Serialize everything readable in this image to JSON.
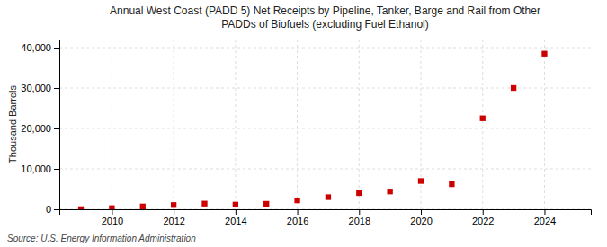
{
  "chart_data": {
    "type": "scatter",
    "title": "Annual West Coast (PADD 5) Net Receipts by Pipeline, Tanker, Barge and Rail from Other\nPADDs of Biofuels (excluding Fuel Ethanol)",
    "ylabel": "Thousand Barrels",
    "annotations": [
      "Source: U.S. Energy Information Administration"
    ],
    "x": [
      2009,
      2010,
      2011,
      2012,
      2013,
      2014,
      2015,
      2016,
      2017,
      2018,
      2019,
      2020,
      2021,
      2022,
      2023,
      2024
    ],
    "values": [
      30,
      280,
      700,
      1050,
      1400,
      1150,
      1350,
      2200,
      3000,
      4000,
      4400,
      7000,
      6200,
      22500,
      30000,
      38500
    ],
    "color": "#cc0000",
    "marker": "square",
    "xlim": [
      2008.3,
      2025.5
    ],
    "ylim": [
      0,
      42000
    ],
    "xticks": [
      2010,
      2012,
      2014,
      2016,
      2018,
      2020,
      2022,
      2024
    ],
    "yticks": [
      0,
      {
        "value": 10000,
        "label": "10,000"
      },
      {
        "value": 20000,
        "label": "20,000"
      },
      {
        "value": 30000,
        "label": "30,000"
      },
      {
        "value": 40000,
        "label": "40,000"
      }
    ],
    "grid": true
  }
}
